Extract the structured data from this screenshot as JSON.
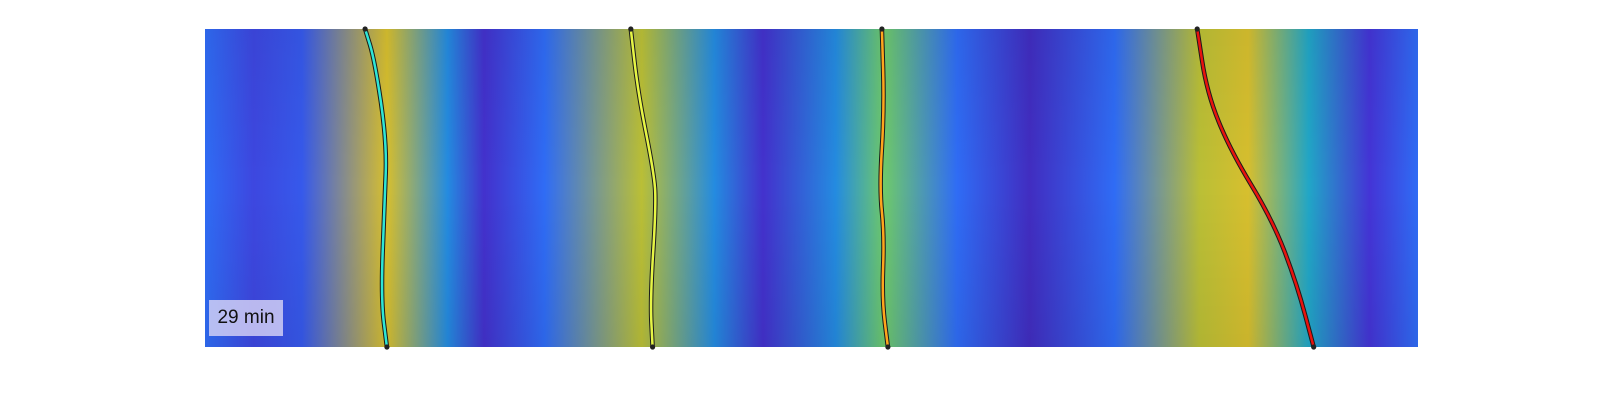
{
  "time_label": "29 min",
  "chart_data": {
    "type": "heatmap",
    "title": "",
    "xlabel": "",
    "ylabel": "",
    "colormap": "parula",
    "colors": {
      "low": "#3e26a8",
      "mid": "#2ab6c0",
      "high": "#f9fb0e"
    },
    "annotation": "29 min",
    "intensity_profile": [
      {
        "x": 0.0,
        "v": 0.3
      },
      {
        "x": 0.04,
        "v": 0.2
      },
      {
        "x": 0.08,
        "v": 0.25
      },
      {
        "x": 0.15,
        "v": 0.85
      },
      {
        "x": 0.2,
        "v": 0.4
      },
      {
        "x": 0.23,
        "v": 0.12
      },
      {
        "x": 0.28,
        "v": 0.3
      },
      {
        "x": 0.36,
        "v": 0.8
      },
      {
        "x": 0.42,
        "v": 0.4
      },
      {
        "x": 0.46,
        "v": 0.12
      },
      {
        "x": 0.52,
        "v": 0.4
      },
      {
        "x": 0.56,
        "v": 0.7
      },
      {
        "x": 0.62,
        "v": 0.3
      },
      {
        "x": 0.68,
        "v": 0.08
      },
      {
        "x": 0.75,
        "v": 0.3
      },
      {
        "x": 0.82,
        "v": 0.8
      },
      {
        "x": 0.86,
        "v": 0.85
      },
      {
        "x": 0.91,
        "v": 0.5
      },
      {
        "x": 0.96,
        "v": 0.15
      },
      {
        "x": 1.0,
        "v": 0.3
      }
    ],
    "series": [
      {
        "color": "#2ee6d6",
        "x": [
          0.132,
          0.14,
          0.15,
          0.148,
          0.145,
          0.15
        ],
        "y": [
          0.0,
          0.1,
          0.36,
          0.55,
          0.85,
          1.0
        ]
      },
      {
        "color": "#e6f545",
        "x": [
          0.351,
          0.357,
          0.37,
          0.372,
          0.367,
          0.369
        ],
        "y": [
          0.0,
          0.2,
          0.45,
          0.55,
          0.85,
          1.0
        ]
      },
      {
        "color": "#ffa51c",
        "x": [
          0.558,
          0.56,
          0.556,
          0.56,
          0.558,
          0.563
        ],
        "y": [
          0.0,
          0.25,
          0.5,
          0.65,
          0.85,
          1.0
        ]
      },
      {
        "color": "#e8120e",
        "x": [
          0.818,
          0.826,
          0.845,
          0.88,
          0.9,
          0.914
        ],
        "y": [
          0.0,
          0.2,
          0.38,
          0.6,
          0.8,
          1.0
        ]
      }
    ]
  }
}
